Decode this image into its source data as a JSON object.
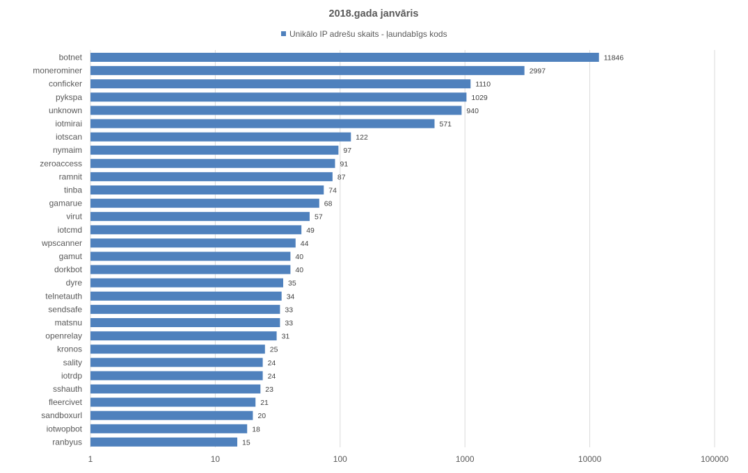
{
  "chart_data": {
    "type": "bar",
    "orientation": "horizontal",
    "title": "2018.gada janvāris",
    "xscale": "log",
    "xlim": [
      1,
      100000
    ],
    "xticks": [
      "1",
      "10",
      "100",
      "1000",
      "10000",
      "100000"
    ],
    "xtick_values": [
      1,
      10,
      100,
      1000,
      10000,
      100000
    ],
    "grid": true,
    "legend_position": "top",
    "categories": [
      "botnet",
      "monerominer",
      "conficker",
      "pykspa",
      "unknown",
      "iotmirai",
      "iotscan",
      "nymaim",
      "zeroaccess",
      "ramnit",
      "tinba",
      "gamarue",
      "virut",
      "iotcmd",
      "wpscanner",
      "gamut",
      "dorkbot",
      "dyre",
      "telnetauth",
      "sendsafe",
      "matsnu",
      "openrelay",
      "kronos",
      "sality",
      "iotrdp",
      "sshauth",
      "fleercivet",
      "sandboxurl",
      "iotwopbot",
      "ranbyus"
    ],
    "series": [
      {
        "name": "Unikālo IP adrešu skaits -  ļaundabīgs kods",
        "color": "#4f81bd",
        "values": [
          11846,
          2997,
          1110,
          1029,
          940,
          571,
          122,
          97,
          91,
          87,
          74,
          68,
          57,
          49,
          44,
          40,
          40,
          35,
          34,
          33,
          33,
          31,
          25,
          24,
          24,
          23,
          21,
          20,
          18,
          15
        ]
      }
    ]
  }
}
